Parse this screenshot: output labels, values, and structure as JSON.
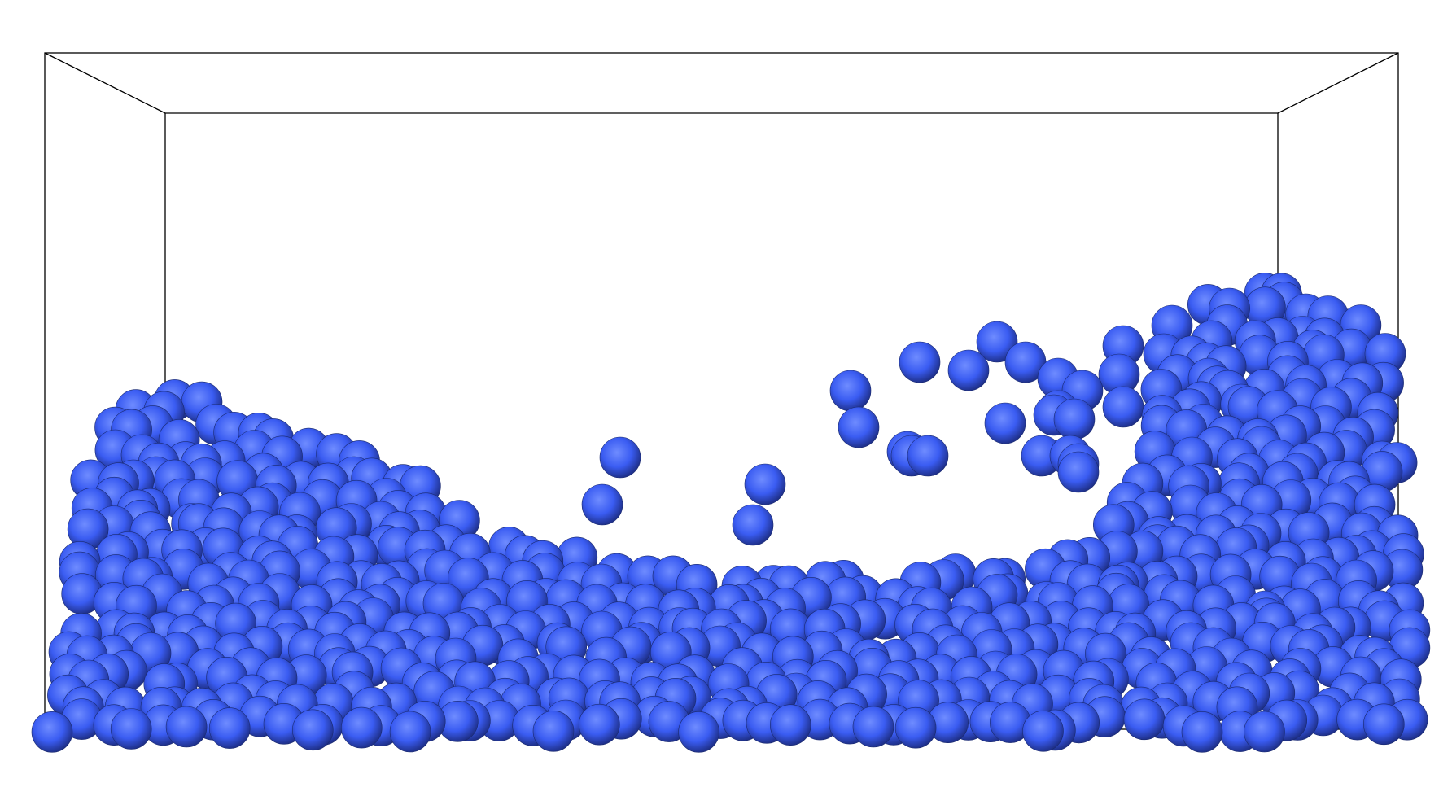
{
  "scene": {
    "background": "#ffffff",
    "box_color": "#000000",
    "particle_color": "#3a5cf2",
    "particle_highlight": "#6f8cff",
    "particle_shadow": "#1c2c80"
  }
}
